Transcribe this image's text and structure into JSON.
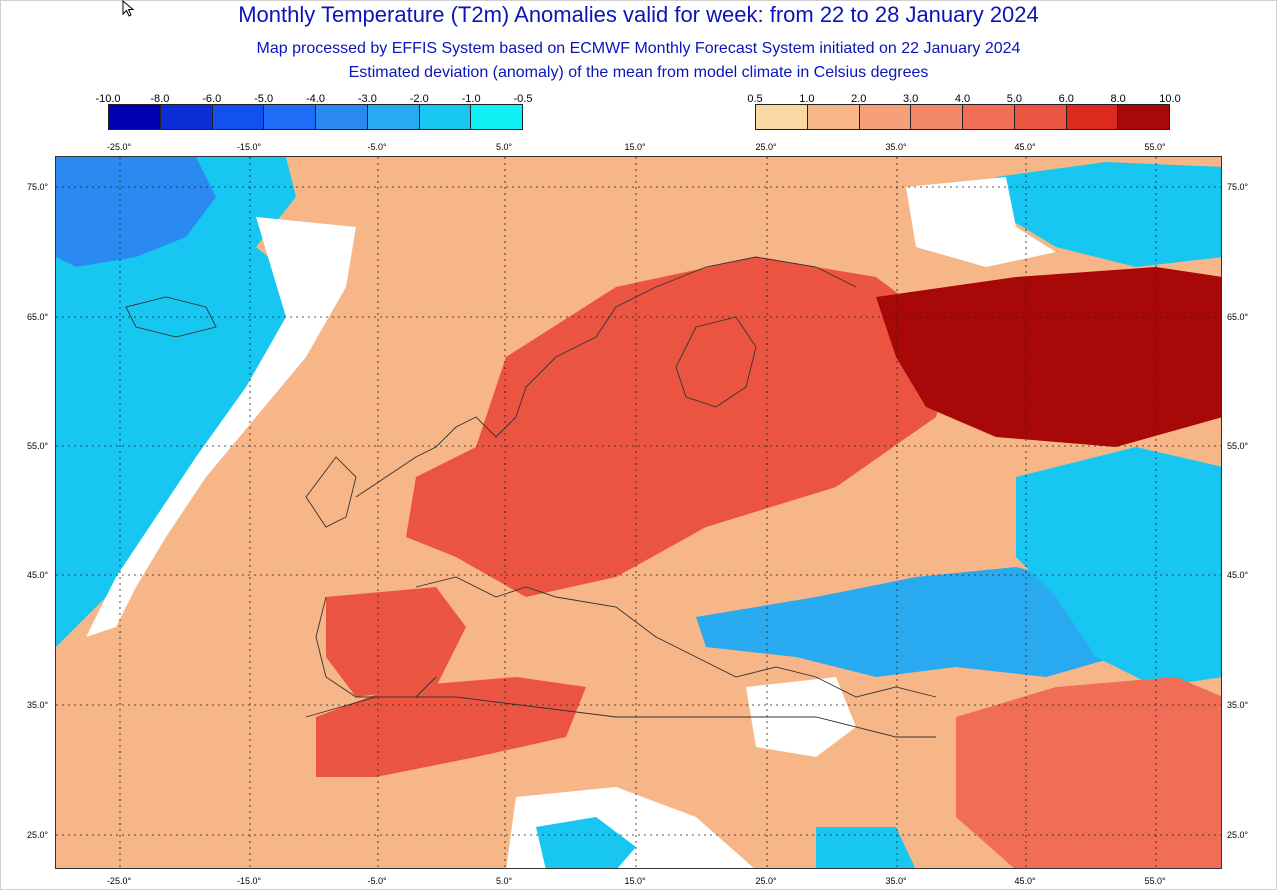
{
  "title": "Monthly Temperature (T2m) Anomalies valid for week: from 22 to 28 January 2024",
  "subtitle_line1": "Map processed by EFFIS System based on ECMWF Monthly Forecast System initiated on 22 January 2024",
  "subtitle_line2": "Estimated deviation (anomaly) of the mean from model climate in Celsius degrees",
  "legend_cold": {
    "labels": [
      "-10.0",
      "-8.0",
      "-6.0",
      "-5.0",
      "-4.0",
      "-3.0",
      "-2.0",
      "-1.0",
      "-0.5"
    ],
    "colors": [
      "#0000b0",
      "#0b2ed6",
      "#1251f0",
      "#1e6ef5",
      "#2a8af2",
      "#28a9f0",
      "#17c7f2",
      "#10f0f5"
    ]
  },
  "legend_warm": {
    "labels": [
      "0.5",
      "1.0",
      "2.0",
      "3.0",
      "4.0",
      "5.0",
      "6.0",
      "8.0",
      "10.0"
    ],
    "colors": [
      "#fad8a3",
      "#f6b687",
      "#f5a078",
      "#f38868",
      "#f06e55",
      "#ec5442",
      "#dc2a1e",
      "#a80808"
    ]
  },
  "longitude_labels": [
    "-25.0°",
    "-15.0°",
    "-5.0°",
    "5.0°",
    "15.0°",
    "25.0°",
    "35.0°",
    "45.0°",
    "55.0°"
  ],
  "latitude_labels": [
    "75.0°",
    "65.0°",
    "55.0°",
    "45.0°",
    "35.0°",
    "25.0°"
  ],
  "map": {
    "background_color": "#f6b687",
    "regions": [
      {
        "name": "atlantic-cold",
        "color": "#17c7f2"
      },
      {
        "name": "greenland-sea-strong-cold",
        "color": "#2a8af2"
      },
      {
        "name": "barents-cold",
        "color": "#17c7f2"
      },
      {
        "name": "russia-strong-warm",
        "color": "#a80808"
      },
      {
        "name": "europe-warm",
        "color": "#ec5442"
      },
      {
        "name": "iberia-warm",
        "color": "#ec5442"
      },
      {
        "name": "north-africa-warm",
        "color": "#ec5442"
      },
      {
        "name": "caspian-cold",
        "color": "#17c7f2"
      },
      {
        "name": "turkey-cold",
        "color": "#28a9f0"
      },
      {
        "name": "arabia-warm",
        "color": "#f06e55"
      },
      {
        "name": "neutral-zone",
        "color": "#ffffff"
      }
    ]
  }
}
